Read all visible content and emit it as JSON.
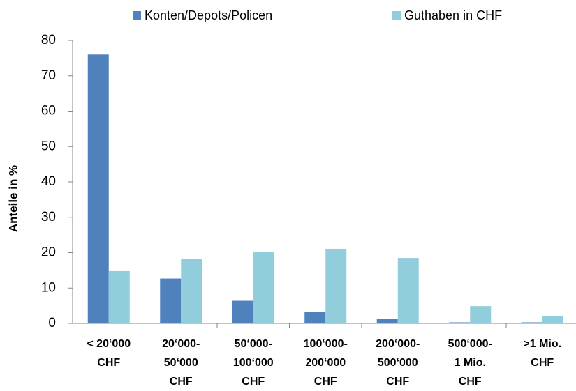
{
  "chart_data": {
    "type": "bar",
    "y_label": "Anteile in %",
    "categories": [
      [
        "< 20‘000",
        "CHF"
      ],
      [
        "20‘000-",
        "50‘000",
        "CHF"
      ],
      [
        "50‘000-",
        "100‘000",
        "CHF"
      ],
      [
        "100‘000-",
        "200‘000",
        "CHF"
      ],
      [
        "200‘000-",
        "500‘000",
        "CHF"
      ],
      [
        "500‘000-",
        "1 Mio.",
        "CHF"
      ],
      [
        ">1 Mio.",
        "CHF"
      ]
    ],
    "series": [
      {
        "name": "Konten/Depots/Policen",
        "color": "#4f81bd",
        "values": [
          76,
          12.7,
          6.4,
          3.3,
          1.3,
          0.3,
          0.3
        ]
      },
      {
        "name": "Guthaben in CHF",
        "color": "#92cddc",
        "values": [
          14.8,
          18.3,
          20.3,
          21.1,
          18.5,
          4.9,
          2.1
        ]
      }
    ],
    "ylim": [
      0,
      80
    ],
    "yticks": [
      0,
      10,
      20,
      30,
      40,
      50,
      60,
      70,
      80
    ],
    "grid": false,
    "legend": "top"
  }
}
